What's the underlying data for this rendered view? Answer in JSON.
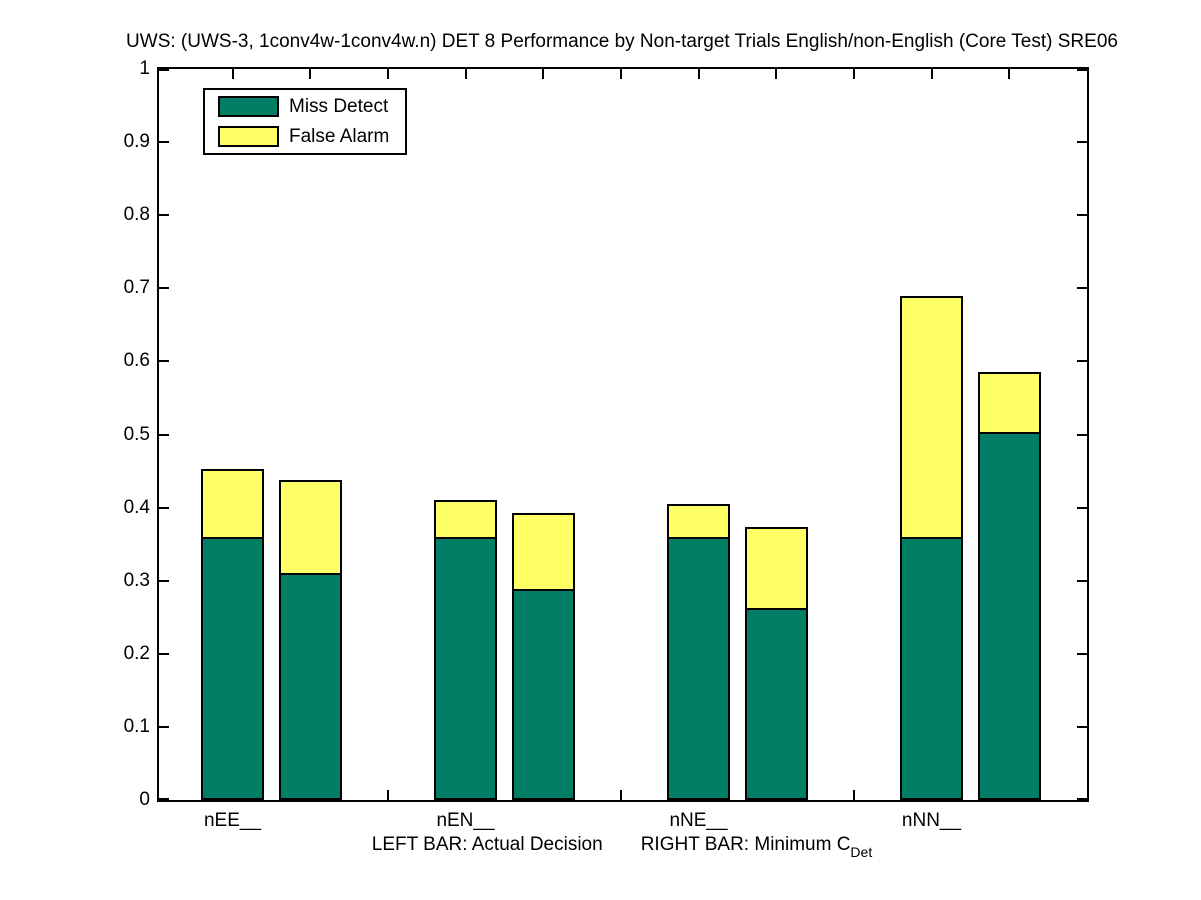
{
  "figure": {
    "title": "UWS: (UWS-3, 1conv4w-1conv4w.n) DET 8 Performance by Non-target Trials English/non-English (Core Test) SRE06"
  },
  "legend": {
    "items": [
      {
        "label": "Miss Detect",
        "color": "#007f66"
      },
      {
        "label": "False Alarm",
        "color": "#ffff66"
      }
    ]
  },
  "axes": {
    "y_tick_labels": [
      "1",
      "0.9",
      "0.8",
      "0.7",
      "0.6",
      "0.5",
      "0.4",
      "0.3",
      "0.2",
      "0.1",
      "0"
    ],
    "x_tick_labels": [
      "nEE__",
      "nEN__",
      "nNE__",
      "nNN__"
    ],
    "xlabel": {
      "left_text": "LEFT BAR: Actual Decision",
      "right_text": "RIGHT BAR: Minimum C",
      "subscript": "Det"
    }
  },
  "chart_data": {
    "type": "bar",
    "stacked": true,
    "grid": false,
    "legend_position": "top-left",
    "title": "UWS: (UWS-3, 1conv4w-1conv4w.n) DET 8 Performance by Non-target Trials English/non-English (Core Test) SRE06",
    "categories": [
      "nEE__",
      "nEN__",
      "nNE__",
      "nNN__"
    ],
    "ylim": [
      0,
      1
    ],
    "y_tick_step": 0.1,
    "bar_semantics": {
      "left_bar": "Actual Decision",
      "right_bar": "Minimum CDet"
    },
    "series": [
      {
        "name": "Miss Detect",
        "color": "#007f66",
        "left_bar": [
          0.36,
          0.36,
          0.36,
          0.36
        ],
        "right_bar": [
          0.31,
          0.289,
          0.262,
          0.504
        ]
      },
      {
        "name": "False Alarm",
        "color": "#ffff66",
        "left_bar": [
          0.093,
          0.05,
          0.045,
          0.33
        ],
        "right_bar": [
          0.128,
          0.104,
          0.111,
          0.081
        ]
      }
    ]
  }
}
